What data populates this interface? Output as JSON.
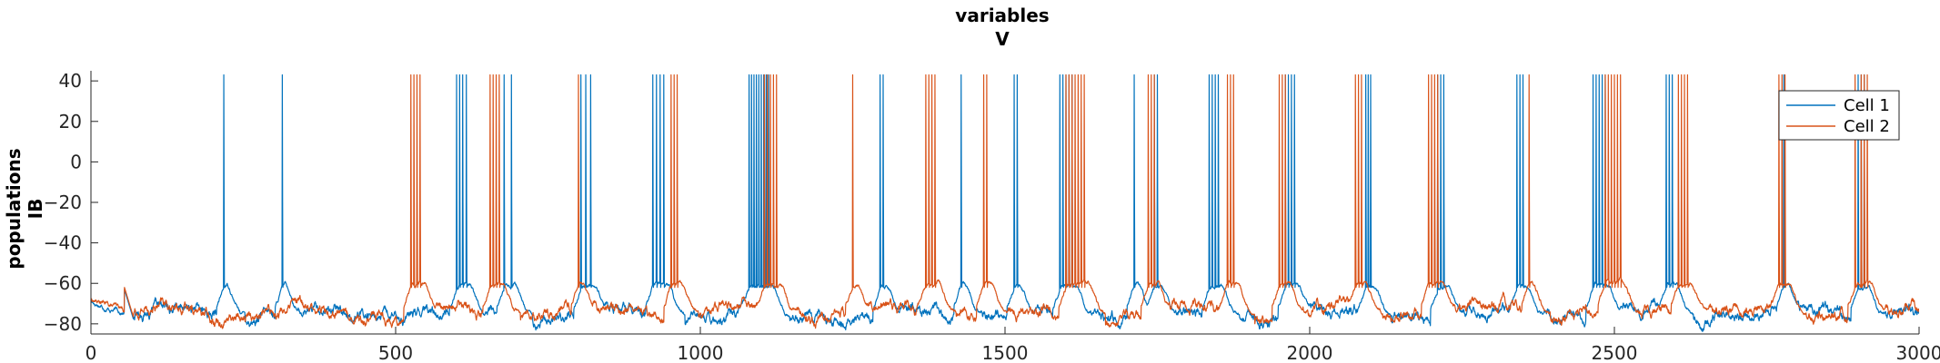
{
  "chart_data": {
    "type": "line",
    "title": [
      "variables",
      "V"
    ],
    "ylabel": [
      "populations",
      "IB"
    ],
    "xlim": [
      0,
      3000
    ],
    "ylim": [
      -85,
      45
    ],
    "xticks": [
      0,
      500,
      1000,
      1500,
      2000,
      2500,
      3000
    ],
    "yticks": [
      -80,
      -60,
      -40,
      -20,
      0,
      20,
      40
    ],
    "grid": false,
    "legend_position": "top-right",
    "series": [
      {
        "name": "Cell 1",
        "color": "#0072BD",
        "baseline": -75,
        "spike_times": [
          218,
          314,
          600,
          605,
          610,
          616,
          678,
          690,
          804,
          812,
          820,
          922,
          928,
          934,
          940,
          1080,
          1084,
          1088,
          1092,
          1096,
          1100,
          1104,
          1108,
          1112,
          1295,
          1300,
          1428,
          1515,
          1520,
          1590,
          1595,
          1600,
          1605,
          1610,
          1712,
          1745,
          1750,
          1835,
          1840,
          1845,
          1850,
          1960,
          1965,
          1970,
          1975,
          2092,
          2096,
          2100,
          2210,
          2215,
          2220,
          2340,
          2345,
          2350,
          2465,
          2470,
          2475,
          2480,
          2485,
          2585,
          2590,
          2595,
          2778,
          2900,
          2905,
          2910
        ],
        "spike_peak": 43
      },
      {
        "name": "Cell 2",
        "color": "#D95319",
        "baseline": -74,
        "spike_times": [
          525,
          530,
          535,
          540,
          655,
          660,
          665,
          670,
          800,
          952,
          957,
          962,
          1105,
          1110,
          1115,
          1120,
          1125,
          1250,
          1370,
          1375,
          1380,
          1385,
          1465,
          1470,
          1600,
          1605,
          1610,
          1615,
          1620,
          1625,
          1630,
          1735,
          1740,
          1745,
          1865,
          1870,
          1875,
          1950,
          1955,
          1960,
          2075,
          2080,
          2085,
          2195,
          2200,
          2205,
          2210,
          2360,
          2485,
          2490,
          2495,
          2500,
          2505,
          2510,
          2605,
          2610,
          2615,
          2620,
          2770,
          2775,
          2780,
          2895,
          2905,
          2910,
          2915
        ],
        "spike_peak": 43
      }
    ]
  }
}
